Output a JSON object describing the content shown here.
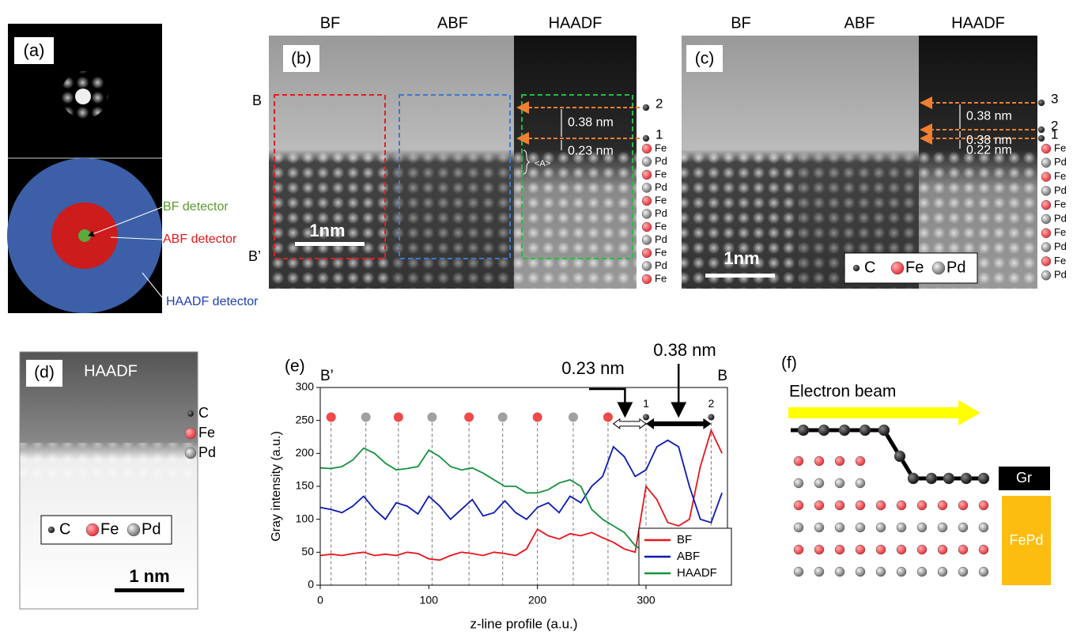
{
  "panels": {
    "a": {
      "label": "(a)",
      "bf": "BF detector",
      "abf": "ABF detector",
      "haadf": "HAADF detector"
    },
    "b": {
      "label": "(b)",
      "columns": [
        "BF",
        "ABF",
        "HAADF"
      ],
      "top": "B",
      "bottom": "B’",
      "scale_bar": "1nm",
      "levels": [
        "2",
        "1"
      ],
      "spacings": [
        "0.38 nm",
        "0.23 nm"
      ],
      "bracket": "<A>",
      "atoms": [
        "Fe",
        "Pd",
        "Fe",
        "Pd",
        "Fe",
        "Pd",
        "Fe",
        "Pd",
        "Fe",
        "Pd",
        "Fe"
      ]
    },
    "c": {
      "label": "(c)",
      "columns": [
        "BF",
        "ABF",
        "HAADF"
      ],
      "scale_bar": "1nm",
      "levels": [
        "3",
        "2",
        "1"
      ],
      "spacings": [
        "0.38 nm",
        "0.38 nm",
        "0.22 nm"
      ],
      "atoms": [
        "Fe",
        "Pd",
        "Fe",
        "Pd",
        "Fe",
        "Pd",
        "Fe",
        "Pd",
        "Fe",
        "Pd"
      ],
      "legend": [
        "C",
        "Fe",
        "Pd"
      ]
    },
    "d": {
      "label": "(d)",
      "title": "HAADF",
      "atoms": [
        "C",
        "Fe",
        "Pd"
      ],
      "legend": [
        "C",
        "Fe",
        "Pd"
      ],
      "scale_bar": "1 nm"
    },
    "f": {
      "label": "(f)",
      "beam": "Electron beam",
      "layers": [
        "Gr",
        "FePd"
      ]
    }
  },
  "chart_data": {
    "panel_label": "(e)",
    "type": "line",
    "xlabel": "z-line profile (a.u.)",
    "ylabel": "Gray intensity (a.u.)",
    "left_label": "B’",
    "right_label": "B",
    "x": [
      0,
      10,
      20,
      30,
      40,
      50,
      60,
      70,
      80,
      90,
      100,
      110,
      120,
      130,
      140,
      150,
      160,
      170,
      180,
      190,
      200,
      210,
      220,
      230,
      240,
      250,
      260,
      270,
      280,
      290,
      300,
      310,
      320,
      330,
      340,
      350,
      360,
      370
    ],
    "series": [
      {
        "name": "BF",
        "color": "#e8141b",
        "values": [
          45,
          47,
          45,
          48,
          50,
          45,
          47,
          45,
          50,
          48,
          40,
          38,
          45,
          50,
          48,
          45,
          50,
          48,
          45,
          55,
          85,
          75,
          70,
          78,
          75,
          80,
          72,
          65,
          55,
          50,
          150,
          130,
          95,
          90,
          100,
          180,
          235,
          200
        ]
      },
      {
        "name": "ABF",
        "color": "#0b18b8",
        "values": [
          118,
          115,
          110,
          120,
          135,
          115,
          100,
          125,
          120,
          108,
          135,
          120,
          100,
          115,
          130,
          105,
          110,
          128,
          110,
          100,
          118,
          125,
          110,
          135,
          125,
          150,
          165,
          210,
          195,
          165,
          175,
          210,
          220,
          210,
          150,
          100,
          95,
          140
        ]
      },
      {
        "name": "HAADF",
        "color": "#14923c",
        "values": [
          178,
          177,
          180,
          190,
          208,
          200,
          185,
          175,
          177,
          180,
          205,
          195,
          180,
          175,
          178,
          170,
          160,
          150,
          150,
          140,
          140,
          145,
          155,
          160,
          150,
          115,
          100,
          90,
          80,
          60,
          50,
          null,
          null,
          null,
          null,
          null,
          null,
          null
        ]
      }
    ],
    "xlim": [
      0,
      375
    ],
    "xticks": [
      0,
      100,
      200,
      300
    ],
    "ylim": [
      0,
      300
    ],
    "yticks": [
      0,
      50,
      100,
      150,
      200,
      250,
      300
    ],
    "legend": "lower right",
    "atom_row": {
      "y": 255,
      "x": [
        10,
        42,
        72,
        103,
        137,
        168,
        200,
        233,
        265
      ],
      "colors": [
        "#f04a4a",
        "#a0a0a0",
        "#f04a4a",
        "#a0a0a0",
        "#f04a4a",
        "#a0a0a0",
        "#f04a4a",
        "#a0a0a0",
        "#f04a4a"
      ]
    },
    "interfaces": {
      "x": [
        300,
        360
      ],
      "labels": [
        "1",
        "2"
      ]
    },
    "annotations": [
      "0.23 nm",
      "0.38 nm"
    ]
  }
}
